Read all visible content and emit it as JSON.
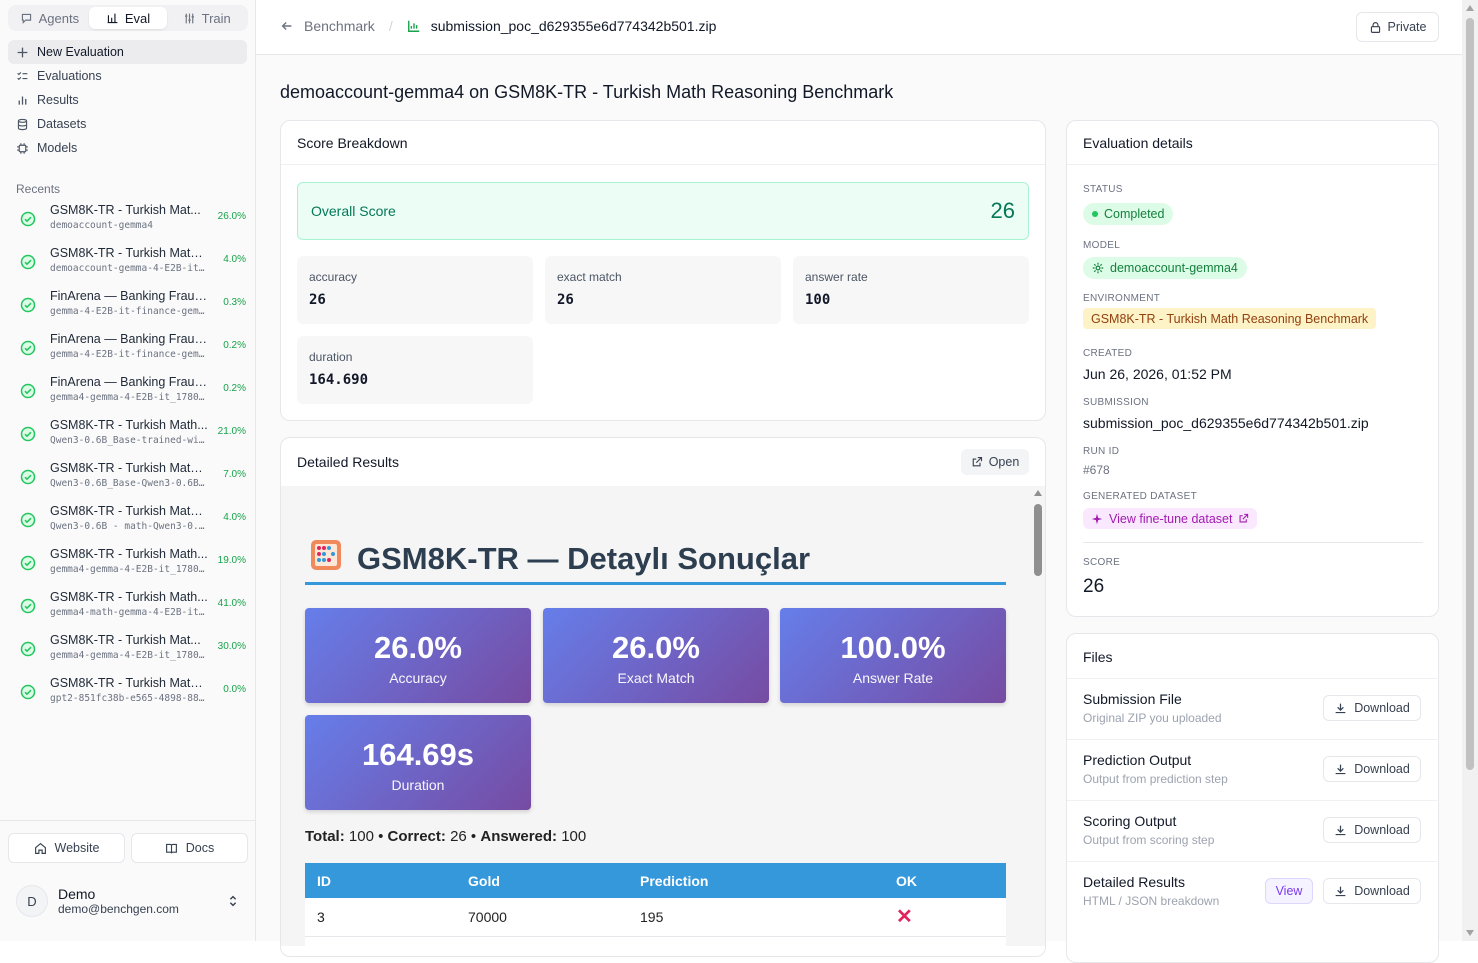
{
  "modes": {
    "agents": "Agents",
    "eval": "Eval",
    "train": "Train"
  },
  "nav": {
    "new_evaluation": "New Evaluation",
    "evaluations": "Evaluations",
    "results": "Results",
    "datasets": "Datasets",
    "models": "Models"
  },
  "recents": {
    "heading": "Recents",
    "items": [
      {
        "title": "GSM8K-TR - Turkish Mat...",
        "sub": "demoaccount-gemma4",
        "pct": "26.0%"
      },
      {
        "title": "GSM8K-TR - Turkish Math ...",
        "sub": "demoaccount-gemma-4-E2B-it-...",
        "pct": "4.0%"
      },
      {
        "title": "FinArena — Banking Fraud...",
        "sub": "gemma-4-E2B-it-finance-gemm...",
        "pct": "0.3%"
      },
      {
        "title": "FinArena — Banking Fraud...",
        "sub": "gemma-4-E2B-it-finance-gemm...",
        "pct": "0.2%"
      },
      {
        "title": "FinArena — Banking Fraud...",
        "sub": "gemma4-gemma-4-E2B-it_17805...",
        "pct": "0.2%"
      },
      {
        "title": "GSM8K-TR - Turkish Math...",
        "sub": "Qwen3-0.6B_Base-trained-wi...",
        "pct": "21.0%"
      },
      {
        "title": "GSM8K-TR - Turkish Math ...",
        "sub": "Qwen3-0.6B_Base-Qwen3-0.6B_...",
        "pct": "7.0%"
      },
      {
        "title": "GSM8K-TR - Turkish Math ...",
        "sub": "Qwen3-0.6B - math-Qwen3-0.6...",
        "pct": "4.0%"
      },
      {
        "title": "GSM8K-TR - Turkish Math...",
        "sub": "gemma4-gemma-4-E2B-it_1780...",
        "pct": "19.0%"
      },
      {
        "title": "GSM8K-TR - Turkish Math...",
        "sub": "gemma4-math-gemma-4-E2B-it...",
        "pct": "41.0%"
      },
      {
        "title": "GSM8K-TR - Turkish Mat...",
        "sub": "gemma4-gemma-4-E2B-it_1780...",
        "pct": "30.0%"
      },
      {
        "title": "GSM8K-TR - Turkish Math ...",
        "sub": "gpt2-851fc38b-e565-4898-884...",
        "pct": "0.0%"
      }
    ]
  },
  "footer": {
    "website": "Website",
    "docs": "Docs",
    "user_initial": "D",
    "user_name": "Demo",
    "user_email": "demo@benchgen.com"
  },
  "breadcrumb": {
    "back": "Benchmark",
    "separator": "/",
    "current": "submission_poc_d629355e6d774342b501.zip"
  },
  "private_label": "Private",
  "page_title": "demoaccount-gemma4 on GSM8K-TR - Turkish Math Reasoning Benchmark",
  "score_breakdown": {
    "title": "Score Breakdown",
    "overall_label": "Overall Score",
    "overall_value": "26",
    "metrics": [
      {
        "label": "accuracy",
        "value": "26"
      },
      {
        "label": "exact match",
        "value": "26"
      },
      {
        "label": "answer rate",
        "value": "100"
      },
      {
        "label": "duration",
        "value": "164.690"
      }
    ]
  },
  "detailed_results": {
    "title": "Detailed Results",
    "open_label": "Open",
    "report": {
      "emoji": "🧮",
      "heading": "GSM8K-TR — Detaylı Sonuçlar",
      "stats": [
        {
          "value": "26.0%",
          "label": "Accuracy"
        },
        {
          "value": "26.0%",
          "label": "Exact Match"
        },
        {
          "value": "100.0%",
          "label": "Answer Rate"
        },
        {
          "value": "164.69s",
          "label": "Duration"
        }
      ],
      "totals": {
        "total_label": "Total:",
        "total": "100",
        "sep1": "•",
        "correct_label": "Correct:",
        "correct": "26",
        "sep2": "•",
        "answered_label": "Answered:",
        "answered": "100"
      },
      "columns": [
        "ID",
        "Gold",
        "Prediction",
        "OK"
      ],
      "rows": [
        {
          "id": "3",
          "gold": "70000",
          "prediction": "195",
          "ok": "✕"
        }
      ]
    }
  },
  "evaluation_details": {
    "title": "Evaluation details",
    "status_label": "STATUS",
    "status": "Completed",
    "model_label": "MODEL",
    "model": "demoaccount-gemma4",
    "environment_label": "ENVIRONMENT",
    "environment": "GSM8K-TR - Turkish Math Reasoning Benchmark",
    "created_label": "CREATED",
    "created": "Jun 26, 2026, 01:52 PM",
    "submission_label": "SUBMISSION",
    "submission": "submission_poc_d629355e6d774342b501.zip",
    "run_id_label": "RUN ID",
    "run_id": "#678",
    "generated_dataset_label": "GENERATED DATASET",
    "generated_dataset": "View fine-tune dataset",
    "score_label": "SCORE",
    "score": "26"
  },
  "files": {
    "title": "Files",
    "download_label": "Download",
    "view_label": "View",
    "items": [
      {
        "name": "Submission File",
        "desc": "Original ZIP you uploaded"
      },
      {
        "name": "Prediction Output",
        "desc": "Output from prediction step"
      },
      {
        "name": "Scoring Output",
        "desc": "Output from scoring step"
      },
      {
        "name": "Detailed Results",
        "desc": "HTML / JSON breakdown"
      }
    ]
  },
  "colors": {
    "accent_green": "#047857",
    "report_blue": "#3498db",
    "gradient_start": "#667eea",
    "gradient_end": "#764ba2",
    "fail_red": "#e0245e"
  }
}
